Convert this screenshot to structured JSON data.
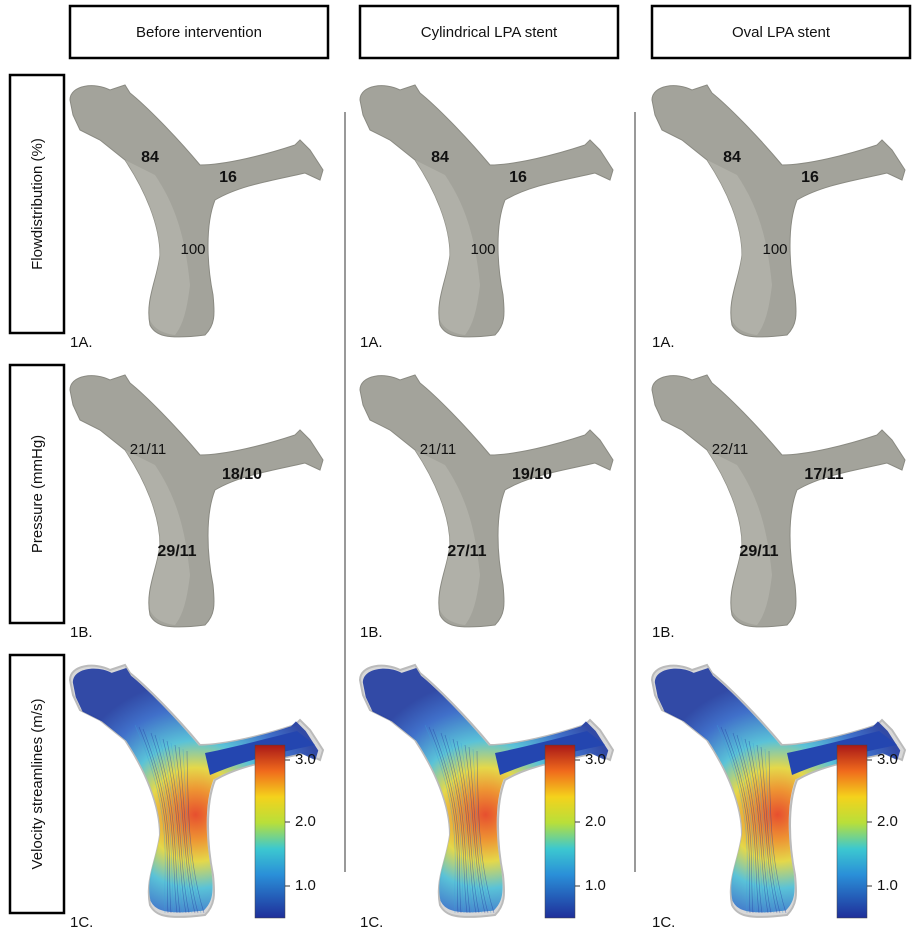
{
  "columns": [
    "Before intervention",
    "Cylindrical LPA stent",
    "Oval LPA stent"
  ],
  "rows": [
    "Flowdistribution (%)",
    "Pressure (mmHg)",
    "Velocity streamlines (m/s)"
  ],
  "panels": [
    [
      {
        "tag": "1A.",
        "rpa": "84",
        "lpa": "16",
        "mpa": "100"
      },
      {
        "tag": "1A.",
        "rpa": "84",
        "lpa": "16",
        "mpa": "100"
      },
      {
        "tag": "1A.",
        "rpa": "84",
        "lpa": "16",
        "mpa": "100"
      }
    ],
    [
      {
        "tag": "1B.",
        "rpa": "21/11",
        "lpa": "18/10",
        "mpa": "29/11"
      },
      {
        "tag": "1B.",
        "rpa": "21/11",
        "lpa": "19/10",
        "mpa": "27/11"
      },
      {
        "tag": "1B.",
        "rpa": "22/11",
        "lpa": "17/11",
        "mpa": "29/11"
      }
    ],
    [
      {
        "tag": "1C."
      },
      {
        "tag": "1C."
      },
      {
        "tag": "1C."
      }
    ]
  ],
  "colorbar_ticks": [
    "3.0",
    "2.0",
    "1.0"
  ]
}
